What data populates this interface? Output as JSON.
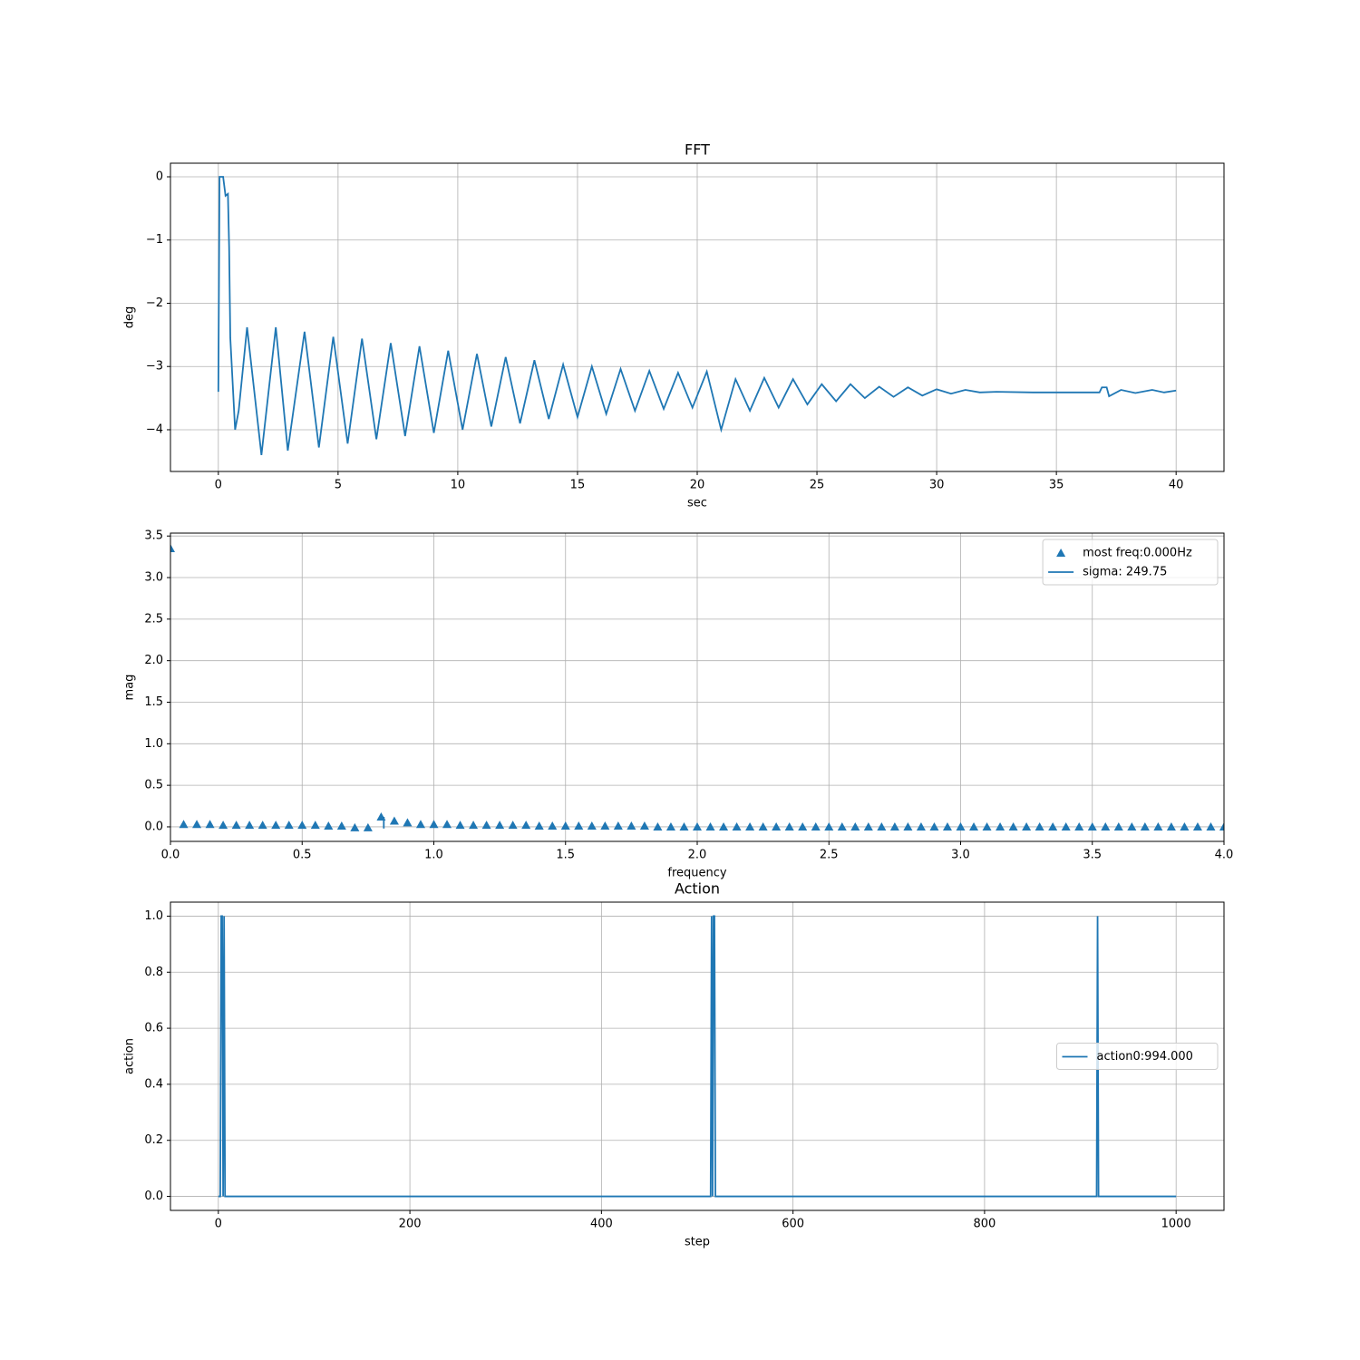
{
  "chart_data": [
    {
      "type": "line",
      "title": "FFT",
      "xlabel": "sec",
      "ylabel": "deg",
      "grid": true,
      "xlim": [
        -2,
        42
      ],
      "ylim": [
        -4.66,
        0.215
      ],
      "xticks": [
        0,
        5,
        10,
        15,
        20,
        25,
        30,
        35,
        40
      ],
      "yticks": [
        {
          "value": -4,
          "label": "−4"
        },
        {
          "value": -3,
          "label": "−3"
        },
        {
          "value": -2,
          "label": "−2"
        },
        {
          "value": -1,
          "label": "−1"
        },
        0
      ],
      "series": [
        {
          "color": "#1f77b4",
          "x": [
            0,
            0.05,
            0.2,
            0.3,
            0.4,
            0.45,
            0.5,
            0.7,
            0.85,
            1.2,
            1.8,
            2.4,
            2.9,
            3.6,
            4.2,
            4.8,
            5.4,
            6.0,
            6.6,
            7.2,
            7.8,
            8.4,
            9.0,
            9.6,
            10.2,
            10.8,
            11.4,
            12.0,
            12.6,
            13.2,
            13.8,
            14.4,
            15.0,
            15.6,
            16.2,
            16.8,
            17.4,
            18.0,
            18.6,
            19.2,
            19.8,
            20.4,
            21.0,
            21.6,
            22.2,
            22.8,
            23.4,
            24.0,
            24.6,
            25.2,
            25.8,
            26.4,
            27.0,
            27.6,
            28.2,
            28.8,
            29.4,
            30.0,
            30.6,
            31.2,
            31.8,
            32.5,
            34.0,
            35.0,
            36.8,
            36.9,
            37.1,
            37.2,
            37.7,
            38.3,
            39.0,
            39.5,
            40.0
          ],
          "values": [
            -3.4,
            0,
            0,
            -0.3,
            -0.27,
            -1.1,
            -2.55,
            -4.0,
            -3.7,
            -2.38,
            -4.4,
            -2.38,
            -4.33,
            -2.45,
            -4.28,
            -2.53,
            -4.22,
            -2.56,
            -4.15,
            -2.63,
            -4.1,
            -2.68,
            -4.05,
            -2.75,
            -4.0,
            -2.8,
            -3.95,
            -2.85,
            -3.9,
            -2.9,
            -3.83,
            -2.97,
            -3.8,
            -3.0,
            -3.75,
            -3.04,
            -3.7,
            -3.07,
            -3.67,
            -3.1,
            -3.65,
            -3.08,
            -4.0,
            -3.2,
            -3.7,
            -3.18,
            -3.65,
            -3.2,
            -3.6,
            -3.28,
            -3.55,
            -3.28,
            -3.5,
            -3.32,
            -3.48,
            -3.33,
            -3.46,
            -3.36,
            -3.43,
            -3.37,
            -3.41,
            -3.4,
            -3.41,
            -3.41,
            -3.41,
            -3.33,
            -3.33,
            -3.47,
            -3.37,
            -3.42,
            -3.37,
            -3.41,
            -3.38
          ]
        }
      ]
    },
    {
      "type": "scatter",
      "xlabel": "frequency",
      "ylabel": "mag",
      "grid": true,
      "legend": "upper right",
      "xlim": [
        0,
        4
      ],
      "ylim": [
        -0.175,
        3.535
      ],
      "xticks": [
        {
          "value": 0,
          "label": "0.0"
        },
        0.5,
        {
          "value": 1,
          "label": "1.0"
        },
        1.5,
        {
          "value": 2,
          "label": "2.0"
        },
        2.5,
        {
          "value": 3,
          "label": "3.0"
        },
        3.5,
        {
          "value": 4,
          "label": "4.0"
        }
      ],
      "yticks": [
        {
          "value": 0,
          "label": "0.0"
        },
        0.5,
        {
          "value": 1,
          "label": "1.0"
        },
        1.5,
        {
          "value": 2,
          "label": "2.0"
        },
        2.5,
        {
          "value": 3,
          "label": "3.0"
        },
        3.5
      ],
      "series": [
        {
          "name": "most freq:0.000Hz",
          "type": "scatter",
          "marker": "^",
          "color": "#1f77b4",
          "x": [
            0,
            0.05,
            0.1,
            0.15,
            0.2,
            0.25,
            0.3,
            0.35,
            0.4,
            0.45,
            0.5,
            0.55,
            0.6,
            0.65,
            0.7,
            0.75,
            0.8,
            0.85,
            0.9,
            0.95,
            1,
            1.05,
            1.1,
            1.15,
            1.2,
            1.25,
            1.3,
            1.35,
            1.4,
            1.45,
            1.5,
            1.55,
            1.6,
            1.65,
            1.7,
            1.75,
            1.8,
            1.85,
            1.9,
            1.95,
            2,
            2.05,
            2.1,
            2.15,
            2.2,
            2.25,
            2.3,
            2.35,
            2.4,
            2.45,
            2.5,
            2.55,
            2.6,
            2.65,
            2.7,
            2.75,
            2.8,
            2.85,
            2.9,
            2.95,
            3,
            3.05,
            3.1,
            3.15,
            3.2,
            3.25,
            3.3,
            3.35,
            3.4,
            3.45,
            3.5,
            3.55,
            3.6,
            3.65,
            3.7,
            3.75,
            3.8,
            3.85,
            3.9,
            3.95,
            4
          ],
          "values": [
            3.35,
            0.03,
            0.03,
            0.03,
            0.02,
            0.02,
            0.02,
            0.02,
            0.02,
            0.02,
            0.02,
            0.02,
            0.01,
            0.01,
            -0.01,
            -0.01,
            0.12,
            0.07,
            0.05,
            0.03,
            0.03,
            0.03,
            0.02,
            0.02,
            0.02,
            0.02,
            0.02,
            0.02,
            0.01,
            0.01,
            0.01,
            0.01,
            0.01,
            0.01,
            0.01,
            0.01,
            0.01,
            0,
            0,
            0,
            0,
            0,
            0,
            0,
            0,
            0,
            0,
            0,
            0,
            0,
            0,
            0,
            0,
            0,
            0,
            0,
            0,
            0,
            0,
            0,
            0,
            0,
            0,
            0,
            0,
            0,
            0,
            0,
            0,
            0,
            0,
            0,
            0,
            0,
            0,
            0,
            0,
            0,
            0,
            0,
            0
          ]
        },
        {
          "name": "sigma: 249.75",
          "type": "line",
          "color": "#1f77b4",
          "x": [
            0.81,
            0.81
          ],
          "values": [
            -0.02,
            0.12
          ]
        }
      ]
    },
    {
      "type": "line",
      "title": "Action",
      "xlabel": "step",
      "ylabel": "action",
      "grid": true,
      "legend": "center right",
      "xlim": [
        -50,
        1050
      ],
      "ylim": [
        -0.05,
        1.05
      ],
      "xticks": [
        0,
        200,
        400,
        600,
        800,
        1000
      ],
      "yticks": [
        {
          "value": 0,
          "label": "0.0"
        },
        0.2,
        0.4,
        0.6,
        0.8,
        {
          "value": 1,
          "label": "1.0"
        }
      ],
      "series": [
        {
          "name": "action0:994.000",
          "color": "#1f77b4",
          "x": [
            0,
            2,
            3,
            4,
            5,
            6,
            7,
            8,
            514,
            515,
            516,
            517,
            518,
            519,
            917,
            918,
            919,
            1000
          ],
          "values": [
            0,
            0,
            1,
            1,
            0,
            1,
            0,
            0,
            0,
            1,
            0,
            1,
            1,
            0,
            0,
            1,
            0,
            0
          ]
        }
      ]
    }
  ]
}
